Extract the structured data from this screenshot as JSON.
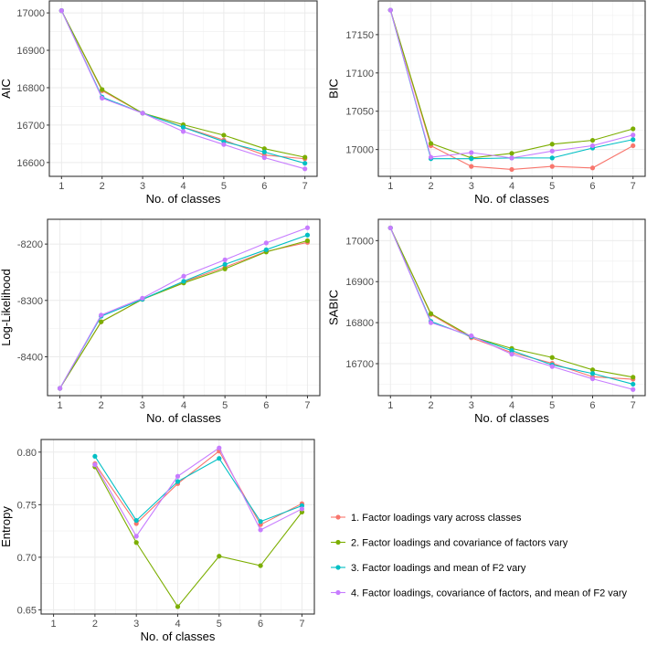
{
  "chart_data": [
    {
      "type": "line",
      "id": "aic",
      "ylabel": "AIC",
      "xlabel": "No. of classes",
      "x": [
        1,
        2,
        3,
        4,
        5,
        6,
        7
      ],
      "xlim": [
        0.7,
        7.3
      ],
      "ylim": [
        16563,
        17032
      ],
      "yticks": [
        16600,
        16700,
        16800,
        16900,
        17000
      ],
      "ytick_labels": [
        "16600",
        "16700",
        "16800",
        "16900",
        "17000"
      ],
      "grid": true,
      "series": [
        {
          "name": "1",
          "values": [
            17006,
            16792,
            16732,
            16695,
            16660,
            16620,
            16610
          ]
        },
        {
          "name": "2",
          "values": [
            17006,
            16795,
            16732,
            16701,
            16673,
            16637,
            16614
          ]
        },
        {
          "name": "3",
          "values": [
            17006,
            16775,
            16732,
            16694,
            16656,
            16628,
            16598
          ]
        },
        {
          "name": "4",
          "values": [
            17006,
            16772,
            16732,
            16683,
            16648,
            16613,
            16583
          ]
        }
      ]
    },
    {
      "type": "line",
      "id": "bic",
      "ylabel": "BIC",
      "xlabel": "No. of classes",
      "x": [
        1,
        2,
        3,
        4,
        5,
        6,
        7
      ],
      "xlim": [
        0.7,
        7.3
      ],
      "ylim": [
        16965,
        17194
      ],
      "yticks": [
        17000,
        17050,
        17100,
        17150
      ],
      "ytick_labels": [
        "17000",
        "17050",
        "17100",
        "17150"
      ],
      "grid": true,
      "series": [
        {
          "name": "1",
          "values": [
            17182,
            17005,
            16978,
            16974,
            16978,
            16976,
            17005
          ]
        },
        {
          "name": "2",
          "values": [
            17182,
            17008,
            16989,
            16995,
            17007,
            17012,
            17027
          ]
        },
        {
          "name": "3",
          "values": [
            17182,
            16988,
            16988,
            16989,
            16989,
            17002,
            17013
          ]
        },
        {
          "name": "4",
          "values": [
            17182,
            16990,
            16996,
            16989,
            16998,
            17005,
            17019
          ]
        }
      ]
    },
    {
      "type": "line",
      "id": "loglik",
      "ylabel": "Log-Likelihood",
      "xlabel": "No. of classes",
      "x": [
        1,
        2,
        3,
        4,
        5,
        6,
        7
      ],
      "xlim": [
        0.7,
        7.3
      ],
      "ylim": [
        -8469,
        -8156
      ],
      "yticks": [
        -8400,
        -8300,
        -8200
      ],
      "ytick_labels": [
        "-8400",
        "-8300",
        "-8200"
      ],
      "grid": true,
      "series": [
        {
          "name": "1",
          "values": [
            -8456,
            -8338,
            -8298,
            -8267,
            -8241,
            -8213,
            -8197
          ]
        },
        {
          "name": "2",
          "values": [
            -8456,
            -8338,
            -8298,
            -8269,
            -8244,
            -8214,
            -8194
          ]
        },
        {
          "name": "3",
          "values": [
            -8456,
            -8328,
            -8298,
            -8266,
            -8236,
            -8210,
            -8184
          ]
        },
        {
          "name": "4",
          "values": [
            -8456,
            -8326,
            -8296,
            -8257,
            -8228,
            -8198,
            -8171
          ]
        }
      ]
    },
    {
      "type": "line",
      "id": "sabic",
      "ylabel": "SABIC",
      "xlabel": "No. of classes",
      "x": [
        1,
        2,
        3,
        4,
        5,
        6,
        7
      ],
      "xlim": [
        0.7,
        7.3
      ],
      "ylim": [
        16622,
        17052
      ],
      "yticks": [
        16700,
        16800,
        16900,
        17000
      ],
      "ytick_labels": [
        "16700",
        "16800",
        "16900",
        "17000"
      ],
      "grid": true,
      "series": [
        {
          "name": "1",
          "values": [
            17031,
            16820,
            16763,
            16727,
            16701,
            16668,
            16662
          ]
        },
        {
          "name": "2",
          "values": [
            17031,
            16822,
            16766,
            16737,
            16715,
            16685,
            16667
          ]
        },
        {
          "name": "3",
          "values": [
            17031,
            16803,
            16766,
            16732,
            16697,
            16676,
            16650
          ]
        },
        {
          "name": "4",
          "values": [
            17031,
            16800,
            16768,
            16723,
            16693,
            16663,
            16637
          ]
        }
      ]
    },
    {
      "type": "line",
      "id": "entropy",
      "ylabel": "Entropy",
      "xlabel": "No. of classes",
      "x": [
        2,
        3,
        4,
        5,
        6,
        7
      ],
      "xticks": [
        1,
        2,
        3,
        4,
        5,
        6,
        7
      ],
      "xlim": [
        0.7,
        7.3
      ],
      "ylim": [
        0.646,
        0.812
      ],
      "yticks": [
        0.65,
        0.7,
        0.75,
        0.8
      ],
      "ytick_labels": [
        "0.65",
        "0.70",
        "0.75",
        "0.80"
      ],
      "grid": true,
      "series": [
        {
          "name": "1",
          "values": [
            0.789,
            0.732,
            0.77,
            0.801,
            0.731,
            0.751
          ]
        },
        {
          "name": "2",
          "values": [
            0.786,
            0.714,
            0.653,
            0.701,
            0.692,
            0.743
          ]
        },
        {
          "name": "3",
          "values": [
            0.796,
            0.735,
            0.772,
            0.794,
            0.734,
            0.749
          ]
        },
        {
          "name": "4",
          "values": [
            0.788,
            0.72,
            0.777,
            0.804,
            0.726,
            0.746
          ]
        }
      ]
    }
  ],
  "legend": {
    "placement": "bottom-right",
    "items": [
      {
        "label": "1. Factor loadings vary across classes",
        "color": "#F8766D"
      },
      {
        "label": "2. Factor loadings and covariance of factors vary",
        "color": "#7CAE00"
      },
      {
        "label": "3. Factor loadings and mean of F2 vary",
        "color": "#00BFC4"
      },
      {
        "label": "4. Factor loadings, covariance of factors, and mean of F2 vary",
        "color": "#C77CFF"
      }
    ]
  }
}
